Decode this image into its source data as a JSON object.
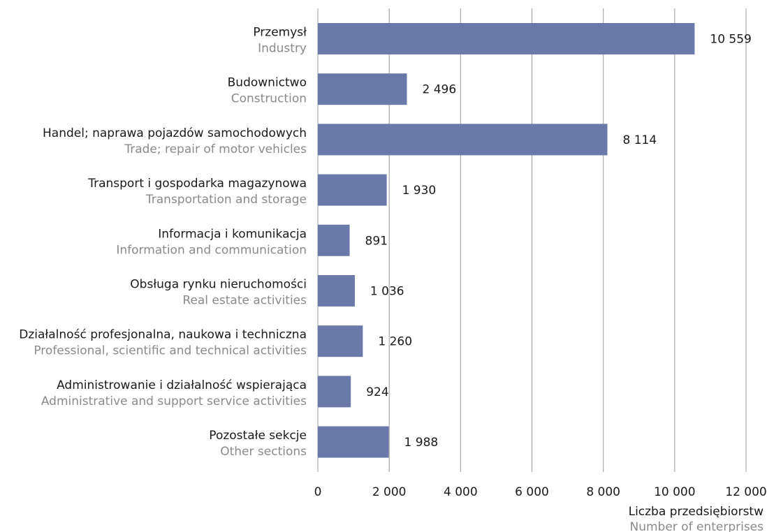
{
  "chart_data": {
    "type": "bar",
    "orientation": "horizontal",
    "categories": [
      {
        "pl": "Przemysł",
        "en": "Industry"
      },
      {
        "pl": "Budownictwo",
        "en": "Construction"
      },
      {
        "pl": "Handel; naprawa pojazdów samochodowych",
        "en": "Trade; repair of motor vehicles"
      },
      {
        "pl": "Transport i gospodarka magazynowa",
        "en": "Transportation and storage"
      },
      {
        "pl": "Informacja i komunikacja",
        "en": "Information and communication"
      },
      {
        "pl": "Obsługa rynku nieruchomości",
        "en": "Real estate activities"
      },
      {
        "pl": "Działalność profesjonalna, naukowa i techniczna",
        "en": "Professional, scientific and technical activities"
      },
      {
        "pl": "Administrowanie i działalność wspierająca",
        "en": "Administrative and support service activities"
      },
      {
        "pl": "Pozostałe sekcje",
        "en": "Other sections"
      }
    ],
    "values": [
      10559,
      2496,
      8114,
      1930,
      891,
      1036,
      1260,
      924,
      1988
    ],
    "value_labels": [
      "10 559",
      "2 496",
      "8 114",
      "1 930",
      "891",
      "1 036",
      "1 260",
      "924",
      "1 988"
    ],
    "xlim": [
      0,
      12000
    ],
    "xticks": [
      0,
      2000,
      4000,
      6000,
      8000,
      10000,
      12000
    ],
    "xtick_labels": [
      "0",
      "2 000",
      "4 000",
      "6 000",
      "8 000",
      "10 000",
      "12 000"
    ],
    "xlabel": {
      "pl": "Liczba przedsiębiorstw",
      "en": "Number of enterprises"
    },
    "grid": "vertical",
    "bar_color": "#6a78aa"
  }
}
